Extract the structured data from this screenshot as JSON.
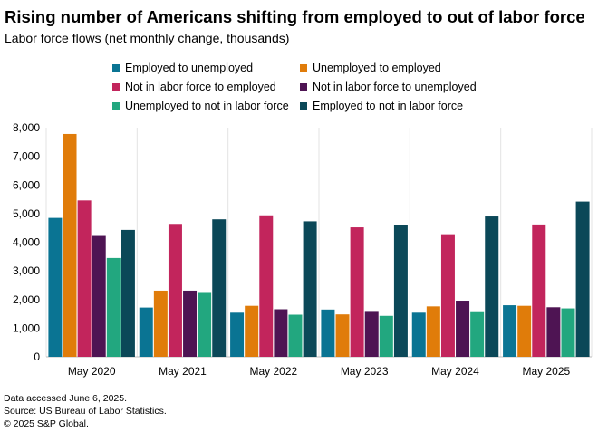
{
  "chart_data": {
    "type": "bar",
    "title": "Rising number of Americans shifting from employed to out of labor force",
    "subtitle": "Labor force flows (net monthly change, thousands)",
    "categories": [
      "May 2020",
      "May 2021",
      "May 2022",
      "May 2023",
      "May 2024",
      "May 2025"
    ],
    "ylim": [
      0,
      8000
    ],
    "yticks": [
      0,
      1000,
      2000,
      3000,
      4000,
      5000,
      6000,
      7000,
      8000
    ],
    "ytick_labels": [
      "0",
      "1,000",
      "2,000",
      "3,000",
      "4,000",
      "5,000",
      "6,000",
      "7,000",
      "8,000"
    ],
    "series": [
      {
        "name": "Employed to unemployed",
        "color": "#0a7493",
        "values": [
          4850,
          1720,
          1540,
          1650,
          1540,
          1800
        ]
      },
      {
        "name": "Unemployed to employed",
        "color": "#e07c0a",
        "values": [
          7780,
          2310,
          1780,
          1480,
          1760,
          1780
        ]
      },
      {
        "name": "Not in labor force to employed",
        "color": "#c2255c",
        "values": [
          5460,
          4640,
          4940,
          4520,
          4280,
          4620
        ]
      },
      {
        "name": "Not in labor force to unemployed",
        "color": "#4e1453",
        "values": [
          4220,
          2310,
          1660,
          1600,
          1960,
          1730
        ]
      },
      {
        "name": "Unemployed to not in labor force",
        "color": "#22a77f",
        "values": [
          3450,
          2230,
          1470,
          1430,
          1590,
          1690
        ]
      },
      {
        "name": "Employed to not in labor force",
        "color": "#0b4858",
        "values": [
          4430,
          4800,
          4730,
          4590,
          4900,
          5420
        ]
      }
    ]
  },
  "footer": {
    "line1": "Data accessed June 6, 2025.",
    "line2": "Source: US Bureau of Labor Statistics.",
    "line3": "© 2025 S&P Global."
  }
}
